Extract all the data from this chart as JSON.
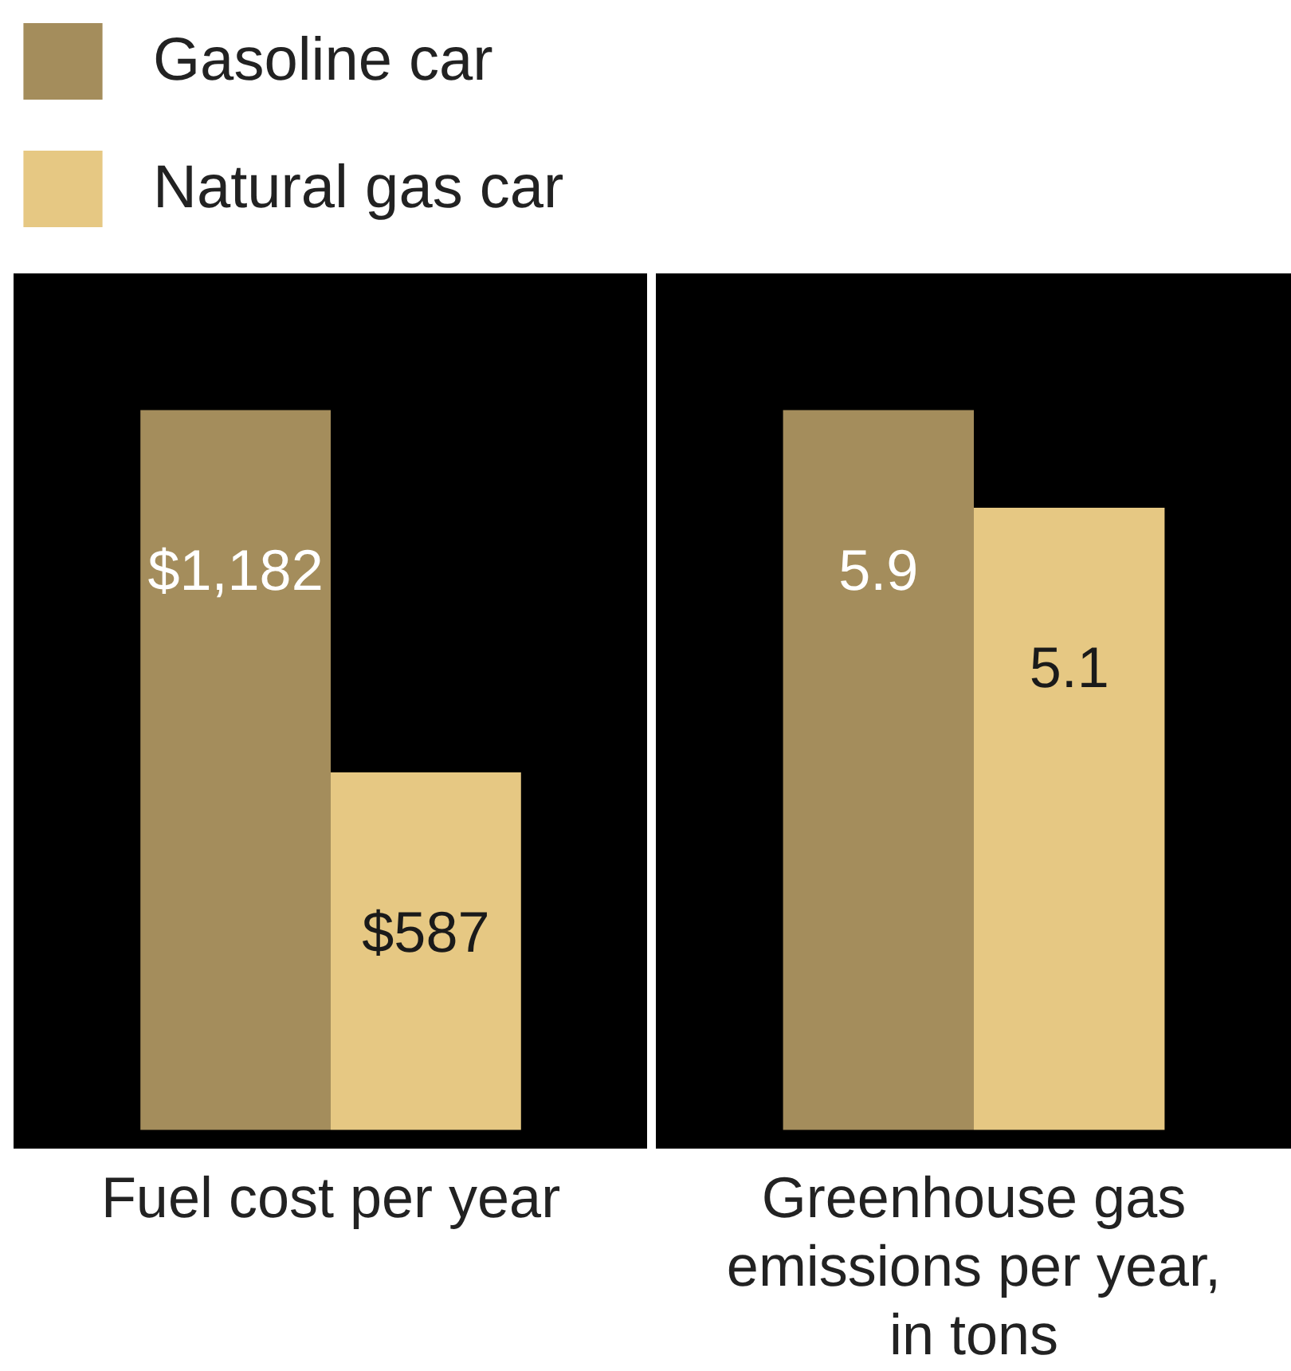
{
  "chart_data": [
    {
      "type": "bar",
      "categories": [
        "Fuel cost per year"
      ],
      "series": [
        {
          "name": "Gasoline car",
          "color": "#a48d5c",
          "values": [
            1182
          ],
          "value_labels": [
            "$1,182"
          ]
        },
        {
          "name": "Natural gas car",
          "color": "#e6c883",
          "values": [
            587
          ],
          "value_labels": [
            "$587"
          ]
        }
      ],
      "legend": "top left"
    },
    {
      "type": "bar",
      "categories": [
        "Greenhouse gas emissions per year, in tons"
      ],
      "series": [
        {
          "color": "#a48d5c",
          "values": [
            5.9
          ]
        },
        {
          "color": "#e6c883",
          "values": [
            5.1
          ]
        }
      ],
      "data_labels": true
    }
  ]
}
